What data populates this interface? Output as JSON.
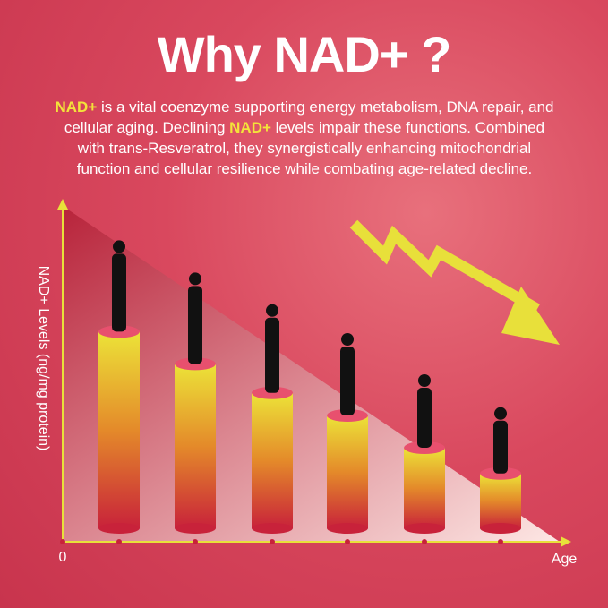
{
  "chart_data": {
    "type": "bar",
    "title": "Why NAD+ ?",
    "description": [
      "NAD+",
      " is a vital coenzyme supporting energy metabolism, DNA repair, and cellular aging. Declining ",
      "NAD+",
      " levels impair these functions. Combined with trans-Resveratrol, they synergistically enhancing mitochondrial function and cellular resilience while combating age-related decline."
    ],
    "y_label": "NAD+ Levels (ng/mg protein)",
    "x_label": "Age",
    "categories": [
      null,
      null,
      null,
      null,
      null,
      null
    ],
    "values": [
      61,
      51,
      42,
      35,
      25,
      17
    ],
    "ylim": [
      0,
      100
    ],
    "yticks": [
      0
    ],
    "color": "#e8e03a"
  }
}
